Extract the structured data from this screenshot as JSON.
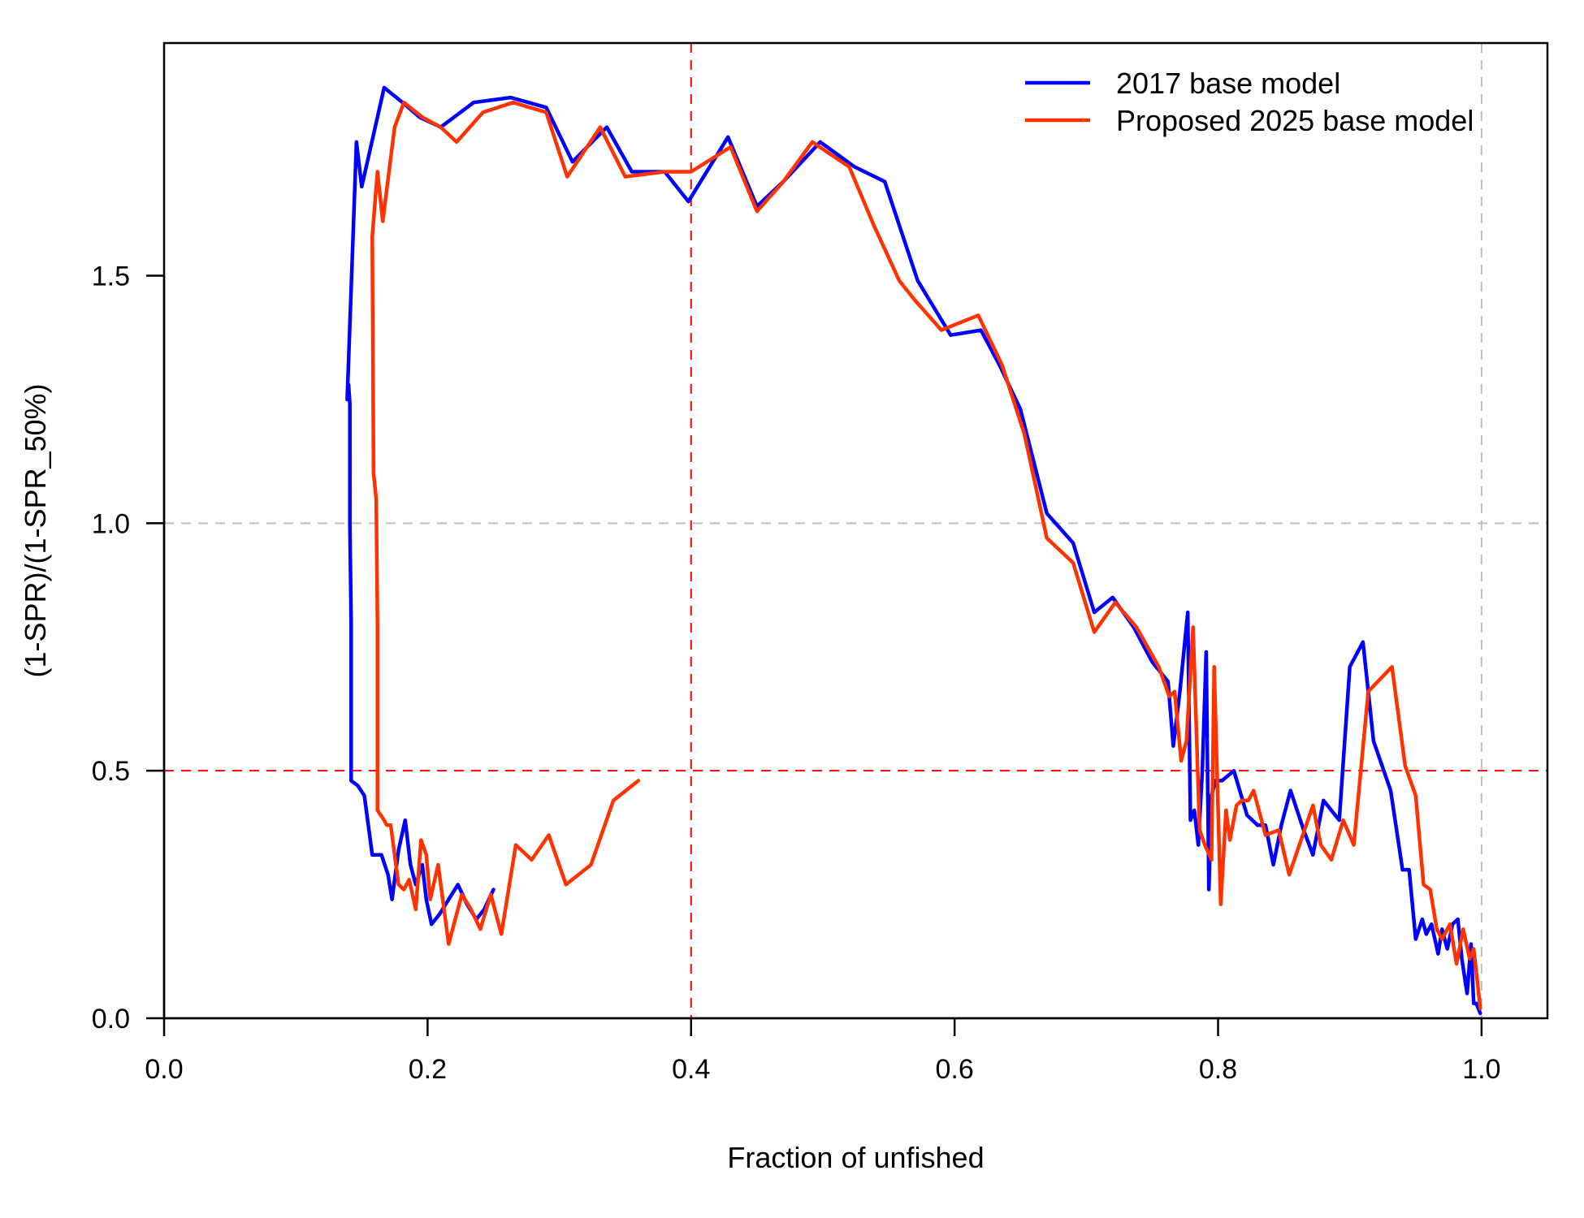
{
  "chart_data": {
    "type": "line",
    "title": "",
    "xlabel": "Fraction of unfished",
    "ylabel": "(1-SPR)/(1-SPR_50%)",
    "xlim": [
      0,
      1.05
    ],
    "ylim": [
      0,
      1.97
    ],
    "x_ticks": [
      0.0,
      0.2,
      0.4,
      0.6,
      0.8,
      1.0
    ],
    "x_tick_labels": [
      "0.0",
      "0.2",
      "0.4",
      "0.6",
      "0.8",
      "1.0"
    ],
    "y_ticks": [
      0.0,
      0.5,
      1.0,
      1.5
    ],
    "y_tick_labels": [
      "0.0",
      "0.5",
      "1.0",
      "1.5"
    ],
    "legend_position": "top-right",
    "reference_lines": [
      {
        "orientation": "vertical",
        "value": 0.4,
        "color": "#ff0000",
        "style": "dashed"
      },
      {
        "orientation": "horizontal",
        "value": 0.5,
        "color": "#ff0000",
        "style": "dashed"
      },
      {
        "orientation": "horizontal",
        "value": 1.0,
        "color": "#bebebe",
        "style": "dashed"
      },
      {
        "orientation": "vertical",
        "value": 1.0,
        "color": "#bebebe",
        "style": "dashed"
      }
    ],
    "series": [
      {
        "name": "2017 base model",
        "color": "#0000ff",
        "x": [
          0.25,
          0.243,
          0.237,
          0.23,
          0.223,
          0.216,
          0.209,
          0.203,
          0.199,
          0.196,
          0.191,
          0.187,
          0.183,
          0.178,
          0.173,
          0.17,
          0.165,
          0.158,
          0.152,
          0.147,
          0.142,
          0.142,
          0.141,
          0.141,
          0.14,
          0.139,
          0.146,
          0.15,
          0.156,
          0.167,
          0.181,
          0.194,
          0.21,
          0.235,
          0.263,
          0.29,
          0.31,
          0.336,
          0.355,
          0.38,
          0.398,
          0.428,
          0.45,
          0.47,
          0.498,
          0.524,
          0.547,
          0.572,
          0.597,
          0.62,
          0.634,
          0.65,
          0.67,
          0.69,
          0.706,
          0.72,
          0.736,
          0.75,
          0.762,
          0.766,
          0.771,
          0.777,
          0.779,
          0.782,
          0.785,
          0.788,
          0.791,
          0.793,
          0.795,
          0.798,
          0.803,
          0.812,
          0.822,
          0.83,
          0.836,
          0.842,
          0.848,
          0.855,
          0.865,
          0.872,
          0.88,
          0.892,
          0.9,
          0.91,
          0.918,
          0.931,
          0.94,
          0.945,
          0.95,
          0.955,
          0.958,
          0.962,
          0.967,
          0.97,
          0.974,
          0.978,
          0.982,
          0.985,
          0.989,
          0.992,
          0.994,
          0.996,
          0.999
        ],
        "y": [
          0.26,
          0.22,
          0.2,
          0.23,
          0.27,
          0.24,
          0.21,
          0.19,
          0.24,
          0.31,
          0.27,
          0.31,
          0.4,
          0.34,
          0.24,
          0.29,
          0.33,
          0.33,
          0.45,
          0.47,
          0.48,
          0.8,
          1.0,
          1.24,
          1.28,
          1.25,
          1.77,
          1.68,
          1.75,
          1.88,
          1.85,
          1.82,
          1.8,
          1.85,
          1.86,
          1.84,
          1.73,
          1.8,
          1.71,
          1.71,
          1.65,
          1.78,
          1.64,
          1.69,
          1.77,
          1.72,
          1.69,
          1.49,
          1.38,
          1.39,
          1.32,
          1.23,
          1.02,
          0.96,
          0.82,
          0.85,
          0.79,
          0.72,
          0.68,
          0.55,
          0.66,
          0.82,
          0.4,
          0.42,
          0.35,
          0.5,
          0.74,
          0.26,
          0.45,
          0.48,
          0.48,
          0.5,
          0.41,
          0.39,
          0.39,
          0.31,
          0.39,
          0.46,
          0.38,
          0.33,
          0.44,
          0.4,
          0.71,
          0.76,
          0.56,
          0.46,
          0.3,
          0.3,
          0.16,
          0.2,
          0.17,
          0.19,
          0.13,
          0.18,
          0.14,
          0.19,
          0.2,
          0.12,
          0.05,
          0.15,
          0.03,
          0.03,
          0.01
        ]
      },
      {
        "name": "Proposed 2025 base model",
        "color": "#ff3300",
        "x": [
          0.36,
          0.341,
          0.324,
          0.305,
          0.292,
          0.279,
          0.267,
          0.256,
          0.248,
          0.24,
          0.233,
          0.226,
          0.216,
          0.208,
          0.202,
          0.199,
          0.195,
          0.191,
          0.186,
          0.182,
          0.178,
          0.172,
          0.169,
          0.167,
          0.162,
          0.162,
          0.161,
          0.159,
          0.158,
          0.162,
          0.166,
          0.175,
          0.182,
          0.196,
          0.21,
          0.222,
          0.242,
          0.265,
          0.29,
          0.306,
          0.331,
          0.35,
          0.38,
          0.4,
          0.43,
          0.45,
          0.47,
          0.492,
          0.52,
          0.539,
          0.558,
          0.57,
          0.59,
          0.618,
          0.636,
          0.653,
          0.67,
          0.69,
          0.706,
          0.722,
          0.738,
          0.755,
          0.763,
          0.767,
          0.772,
          0.776,
          0.781,
          0.786,
          0.79,
          0.795,
          0.797,
          0.802,
          0.806,
          0.809,
          0.814,
          0.818,
          0.823,
          0.827,
          0.836,
          0.846,
          0.854,
          0.863,
          0.872,
          0.878,
          0.886,
          0.895,
          0.903,
          0.914,
          0.932,
          0.942,
          0.95,
          0.956,
          0.961,
          0.966,
          0.97,
          0.976,
          0.981,
          0.986,
          0.991,
          0.994,
          0.997,
          0.999
        ],
        "y": [
          0.48,
          0.44,
          0.31,
          0.27,
          0.37,
          0.32,
          0.35,
          0.17,
          0.25,
          0.18,
          0.22,
          0.25,
          0.15,
          0.31,
          0.24,
          0.33,
          0.36,
          0.22,
          0.28,
          0.26,
          0.27,
          0.39,
          0.39,
          0.4,
          0.42,
          0.8,
          1.05,
          1.1,
          1.58,
          1.71,
          1.61,
          1.8,
          1.85,
          1.82,
          1.8,
          1.77,
          1.83,
          1.85,
          1.83,
          1.7,
          1.8,
          1.7,
          1.71,
          1.71,
          1.76,
          1.63,
          1.69,
          1.77,
          1.72,
          1.6,
          1.49,
          1.45,
          1.39,
          1.42,
          1.32,
          1.18,
          0.97,
          0.92,
          0.78,
          0.84,
          0.79,
          0.71,
          0.65,
          0.66,
          0.52,
          0.56,
          0.79,
          0.38,
          0.35,
          0.32,
          0.71,
          0.23,
          0.42,
          0.36,
          0.43,
          0.44,
          0.44,
          0.46,
          0.37,
          0.38,
          0.29,
          0.36,
          0.43,
          0.35,
          0.32,
          0.4,
          0.35,
          0.66,
          0.71,
          0.51,
          0.45,
          0.27,
          0.26,
          0.18,
          0.16,
          0.19,
          0.11,
          0.18,
          0.12,
          0.14,
          0.07,
          0.02
        ]
      }
    ]
  }
}
